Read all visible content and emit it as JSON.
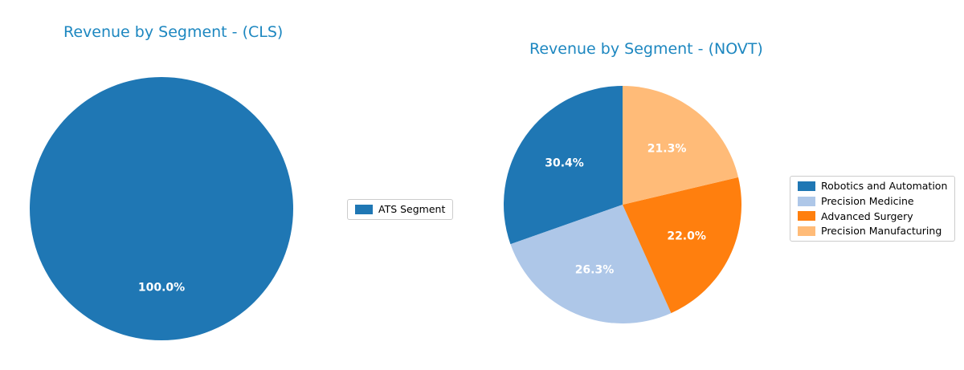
{
  "figure": {
    "background": "#ffffff",
    "title_color": "#1d87c0"
  },
  "chart_data": [
    {
      "type": "pie",
      "title": "Revenue by Segment - (CLS)",
      "labels": [
        "ATS Segment"
      ],
      "values": [
        100.0
      ],
      "pct_labels": [
        "100.0%"
      ],
      "colors": [
        "#1f77b4"
      ],
      "start_angle": 90,
      "direction": "counterclockwise",
      "pct_distance": 0.6,
      "legend_position": "center right"
    },
    {
      "type": "pie",
      "title": "Revenue by Segment - (NOVT)",
      "labels": [
        "Robotics and Automation",
        "Precision Medicine",
        "Advanced Surgery",
        "Precision Manufacturing"
      ],
      "values": [
        30.4,
        26.3,
        22.0,
        21.3
      ],
      "pct_labels": [
        "30.4%",
        "26.3%",
        "22.0%",
        "21.3%"
      ],
      "colors": [
        "#1f77b4",
        "#aec7e8",
        "#ff7f0e",
        "#ffbb78"
      ],
      "start_angle": 90,
      "direction": "counterclockwise",
      "pct_distance": 0.6,
      "legend_position": "center right"
    }
  ]
}
